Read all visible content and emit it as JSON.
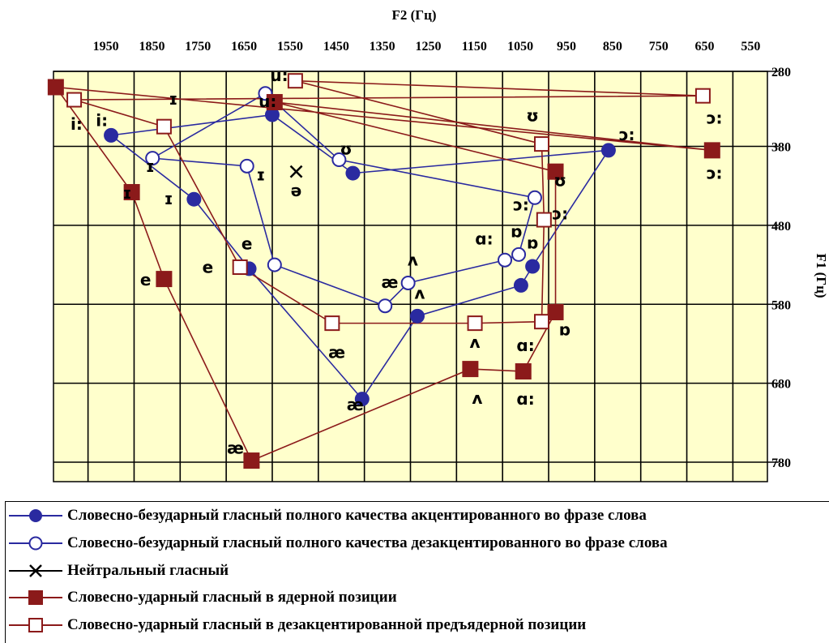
{
  "chart_data": {
    "type": "scatter",
    "title": "",
    "xlabel": "F2 (Гц)",
    "ylabel": "F1 (Гц)",
    "x_ticks": [
      1950,
      1850,
      1750,
      1650,
      1550,
      1450,
      1350,
      1250,
      1150,
      1050,
      950,
      850,
      750,
      650,
      550
    ],
    "y_ticks": [
      280,
      380,
      480,
      580,
      680,
      780
    ],
    "xlim": [
      2025,
      475
    ],
    "ylim": [
      280,
      780
    ],
    "x_reversed": true,
    "grid": true,
    "legend_position": "bottom",
    "colors": {
      "plot_bg": "#FFFFCC",
      "blue_series": "#2A2AA0",
      "red_series": "#8B1A1A",
      "neutral": "#000000",
      "grid": "#000000"
    },
    "series": [
      {
        "name": "Словесно-безударный гласный полного качества акцентированного во фразе слова",
        "marker": "filled-circle",
        "color": "#2A2AA0",
        "points": [
          {
            "x": 1900,
            "y": 366
          },
          {
            "x": 1720,
            "y": 447
          },
          {
            "x": 1600,
            "y": 535
          },
          {
            "x": 1355,
            "y": 700
          },
          {
            "x": 1235,
            "y": 595
          },
          {
            "x": 1010,
            "y": 556
          },
          {
            "x": 985,
            "y": 532
          },
          {
            "x": 820,
            "y": 385
          },
          {
            "x": 1375,
            "y": 414
          },
          {
            "x": 1550,
            "y": 340
          }
        ]
      },
      {
        "name": "Словесно-безударный гласный полного качества дезакцентированного во фразе слова",
        "marker": "hollow-circle",
        "color": "#2A2AA0",
        "points": [
          {
            "x": 1810,
            "y": 395
          },
          {
            "x": 1605,
            "y": 405
          },
          {
            "x": 1545,
            "y": 530
          },
          {
            "x": 1305,
            "y": 582
          },
          {
            "x": 1255,
            "y": 553
          },
          {
            "x": 1045,
            "y": 524
          },
          {
            "x": 1015,
            "y": 517
          },
          {
            "x": 980,
            "y": 445
          },
          {
            "x": 1405,
            "y": 397
          },
          {
            "x": 1565,
            "y": 313
          }
        ]
      },
      {
        "name": "Нейтральный гласный",
        "marker": "cross",
        "color": "#000000",
        "points": [
          {
            "x": 1498,
            "y": 412
          }
        ]
      },
      {
        "name": "Словесно-ударный гласный в ядерной позиции",
        "marker": "filled-square",
        "color": "#8B1A1A",
        "points": [
          {
            "x": 2020,
            "y": 305
          },
          {
            "x": 1855,
            "y": 438
          },
          {
            "x": 1785,
            "y": 548
          },
          {
            "x": 1595,
            "y": 778
          },
          {
            "x": 1120,
            "y": 662
          },
          {
            "x": 1005,
            "y": 665
          },
          {
            "x": 935,
            "y": 590
          },
          {
            "x": 935,
            "y": 412
          },
          {
            "x": 1545,
            "y": 324
          },
          {
            "x": 595,
            "y": 385
          }
        ]
      },
      {
        "name": "Словесно-ударный гласный в дезакцентированной предъядерной позиции",
        "marker": "hollow-square",
        "color": "#8B1A1A",
        "points": [
          {
            "x": 1980,
            "y": 321
          },
          {
            "x": 1785,
            "y": 355
          },
          {
            "x": 1620,
            "y": 533
          },
          {
            "x": 1420,
            "y": 604
          },
          {
            "x": 1110,
            "y": 604
          },
          {
            "x": 965,
            "y": 602
          },
          {
            "x": 960,
            "y": 473
          },
          {
            "x": 965,
            "y": 377
          },
          {
            "x": 1500,
            "y": 297
          },
          {
            "x": 615,
            "y": 316
          }
        ]
      }
    ],
    "annotations": [
      {
        "text": "i:",
        "x": 1975,
        "y": 352
      },
      {
        "text": "i:",
        "x": 1920,
        "y": 347
      },
      {
        "text": "ɪ",
        "x": 1765,
        "y": 320
      },
      {
        "text": "ɪ",
        "x": 1865,
        "y": 439
      },
      {
        "text": "ɪ",
        "x": 1775,
        "y": 446
      },
      {
        "text": "ɪ",
        "x": 1575,
        "y": 416
      },
      {
        "text": "ɪ",
        "x": 1815,
        "y": 405
      },
      {
        "text": "e",
        "x": 1605,
        "y": 503
      },
      {
        "text": "e",
        "x": 1825,
        "y": 549
      },
      {
        "text": "e",
        "x": 1690,
        "y": 533
      },
      {
        "text": "u:",
        "x": 1535,
        "y": 290
      },
      {
        "text": "u:",
        "x": 1560,
        "y": 323
      },
      {
        "text": "ʊ",
        "x": 1390,
        "y": 383
      },
      {
        "text": "ʊ",
        "x": 985,
        "y": 341
      },
      {
        "text": "ʊ",
        "x": 925,
        "y": 423
      },
      {
        "text": "ə",
        "x": 1498,
        "y": 436
      },
      {
        "text": "æ",
        "x": 1295,
        "y": 552
      },
      {
        "text": "æ",
        "x": 1410,
        "y": 641
      },
      {
        "text": "æ",
        "x": 1370,
        "y": 707
      },
      {
        "text": "æ",
        "x": 1630,
        "y": 762
      },
      {
        "text": "ʌ",
        "x": 1245,
        "y": 524
      },
      {
        "text": "ʌ",
        "x": 1230,
        "y": 566
      },
      {
        "text": "ʌ",
        "x": 1110,
        "y": 628
      },
      {
        "text": "ʌ",
        "x": 1105,
        "y": 699
      },
      {
        "text": "ɑ:",
        "x": 1090,
        "y": 497
      },
      {
        "text": "ɑ:",
        "x": 1000,
        "y": 632
      },
      {
        "text": "ɑ:",
        "x": 1000,
        "y": 700
      },
      {
        "text": "ɒ",
        "x": 1020,
        "y": 488
      },
      {
        "text": "ɒ",
        "x": 985,
        "y": 502
      },
      {
        "text": "ɒ",
        "x": 915,
        "y": 612
      },
      {
        "text": "ɔ:",
        "x": 1010,
        "y": 454
      },
      {
        "text": "ɔ:",
        "x": 925,
        "y": 465
      },
      {
        "text": "ɔ:",
        "x": 780,
        "y": 365
      },
      {
        "text": "ɔ:",
        "x": 590,
        "y": 344
      },
      {
        "text": "ɔ:",
        "x": 590,
        "y": 414
      }
    ]
  },
  "legend": [
    {
      "label": "Словесно-безударный гласный полного качества акцентированного во фразе слова",
      "marker": "filled-circle",
      "color": "#2A2AA0"
    },
    {
      "label": "Словесно-безударный гласный полного качества дезакцентированного во фразе слова",
      "marker": "hollow-circle",
      "color": "#2A2AA0"
    },
    {
      "label": "Нейтральный гласный",
      "marker": "cross",
      "color": "#000000"
    },
    {
      "label": "Словесно-ударный гласный в ядерной позиции",
      "marker": "filled-square",
      "color": "#8B1A1A"
    },
    {
      "label": "Словесно-ударный гласный в дезакцентированной предъядерной позиции",
      "marker": "hollow-square",
      "color": "#8B1A1A"
    }
  ]
}
